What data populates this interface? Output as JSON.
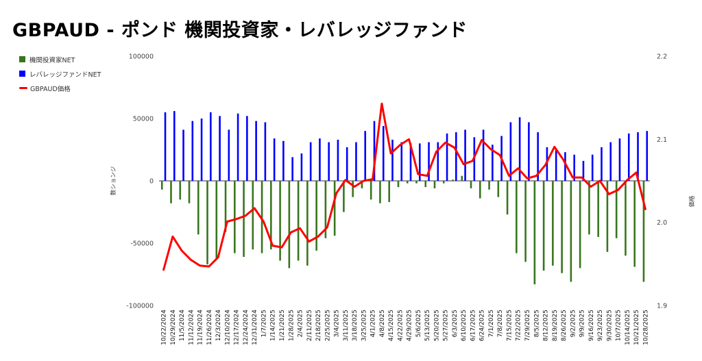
{
  "title": "GBPAUD - ポンド 機関投資家・レバレッジファンド",
  "chart_data": {
    "type": "bar",
    "title": "GBPAUD - ポンド 機関投資家・レバレッジファンド",
    "ylabel_left": "数ションジ",
    "ylabel_right": "価格",
    "ylim_left": [
      -100000,
      100000
    ],
    "ylim_right": [
      1.9,
      2.2
    ],
    "yticks_left": [
      "100000",
      "50000",
      "0",
      "-50000",
      "-100000"
    ],
    "yticks_right": [
      "2.2",
      "2.1",
      "2.0",
      "1.9"
    ],
    "grid": false,
    "legend_position": "left",
    "colors": {
      "institutional": "#38761d",
      "leveraged": "#0000ff",
      "price": "#ff0000"
    },
    "categories": [
      "10/22/2024",
      "10/29/2024",
      "11/5/2024",
      "11/12/2024",
      "11/19/2024",
      "11/26/2024",
      "12/3/2024",
      "12/10/2024",
      "12/17/2024",
      "12/24/2024",
      "12/31/2024",
      "1/7/2025",
      "1/14/2025",
      "1/21/2025",
      "1/28/2025",
      "2/4/2025",
      "2/11/2025",
      "2/18/2025",
      "2/25/2025",
      "3/4/2025",
      "3/11/2025",
      "3/18/2025",
      "3/25/2025",
      "4/1/2025",
      "4/8/2025",
      "4/15/2025",
      "4/22/2025",
      "4/29/2025",
      "5/6/2025",
      "5/13/2025",
      "5/20/2025",
      "5/27/2025",
      "6/3/2025",
      "6/10/2025",
      "6/17/2025",
      "6/24/2025",
      "7/1/2025",
      "7/8/2025",
      "7/15/2025",
      "7/22/2025",
      "7/29/2025",
      "8/5/2025",
      "8/12/2025",
      "8/19/2025",
      "8/26/2025",
      "9/2/2025",
      "9/9/2025",
      "9/16/2025",
      "9/23/2025",
      "9/30/2025",
      "10/7/2025",
      "10/14/2025",
      "10/21/2025",
      "10/28/2025"
    ],
    "series": [
      {
        "name": "機関投資家NET",
        "kind": "bar",
        "values": [
          -7000,
          -18000,
          -15000,
          -18000,
          -43000,
          -67000,
          -63000,
          -41000,
          -58000,
          -61000,
          -55000,
          -58000,
          -55000,
          -64000,
          -70000,
          -64000,
          -68000,
          -56000,
          -46000,
          -44000,
          -25000,
          -13000,
          -6000,
          -15000,
          -18000,
          -17000,
          -5000,
          -2000,
          -2000,
          -5000,
          -6000,
          -2000,
          1000,
          4000,
          -6000,
          -14000,
          -7000,
          -13000,
          -27000,
          -58000,
          -65000,
          -83000,
          -72000,
          -68000,
          -74000,
          -81000,
          -70000,
          -43000,
          -45000,
          -57000,
          -46000,
          -60000,
          -69000,
          -81000
        ]
      },
      {
        "name": "レバレッジファンドNET",
        "kind": "bar",
        "values": [
          55000,
          56000,
          41000,
          48000,
          50000,
          55000,
          52000,
          41000,
          54000,
          52000,
          48000,
          47000,
          34000,
          32000,
          19000,
          22000,
          31000,
          34000,
          31000,
          33000,
          27000,
          31000,
          40000,
          48000,
          44000,
          33000,
          31000,
          30000,
          30000,
          31000,
          31000,
          38000,
          39000,
          41000,
          35000,
          41000,
          29000,
          36000,
          47000,
          51000,
          47000,
          39000,
          27000,
          26000,
          23000,
          21000,
          16000,
          21000,
          27000,
          31000,
          34000,
          38000,
          39000,
          40000
        ]
      },
      {
        "name": "GBPAUD価格",
        "kind": "line",
        "values": [
          1.943,
          1.983,
          1.966,
          1.955,
          1.948,
          1.947,
          1.958,
          2.001,
          2.004,
          2.008,
          2.017,
          2.001,
          1.972,
          1.97,
          1.988,
          1.993,
          1.977,
          1.983,
          1.994,
          2.035,
          2.051,
          2.043,
          2.05,
          2.052,
          2.143,
          2.083,
          2.093,
          2.1,
          2.058,
          2.056,
          2.085,
          2.096,
          2.09,
          2.07,
          2.074,
          2.099,
          2.088,
          2.081,
          2.056,
          2.065,
          2.053,
          2.056,
          2.069,
          2.091,
          2.075,
          2.054,
          2.054,
          2.043,
          2.05,
          2.034,
          2.039,
          2.051,
          2.06,
          2.016
        ]
      }
    ]
  }
}
